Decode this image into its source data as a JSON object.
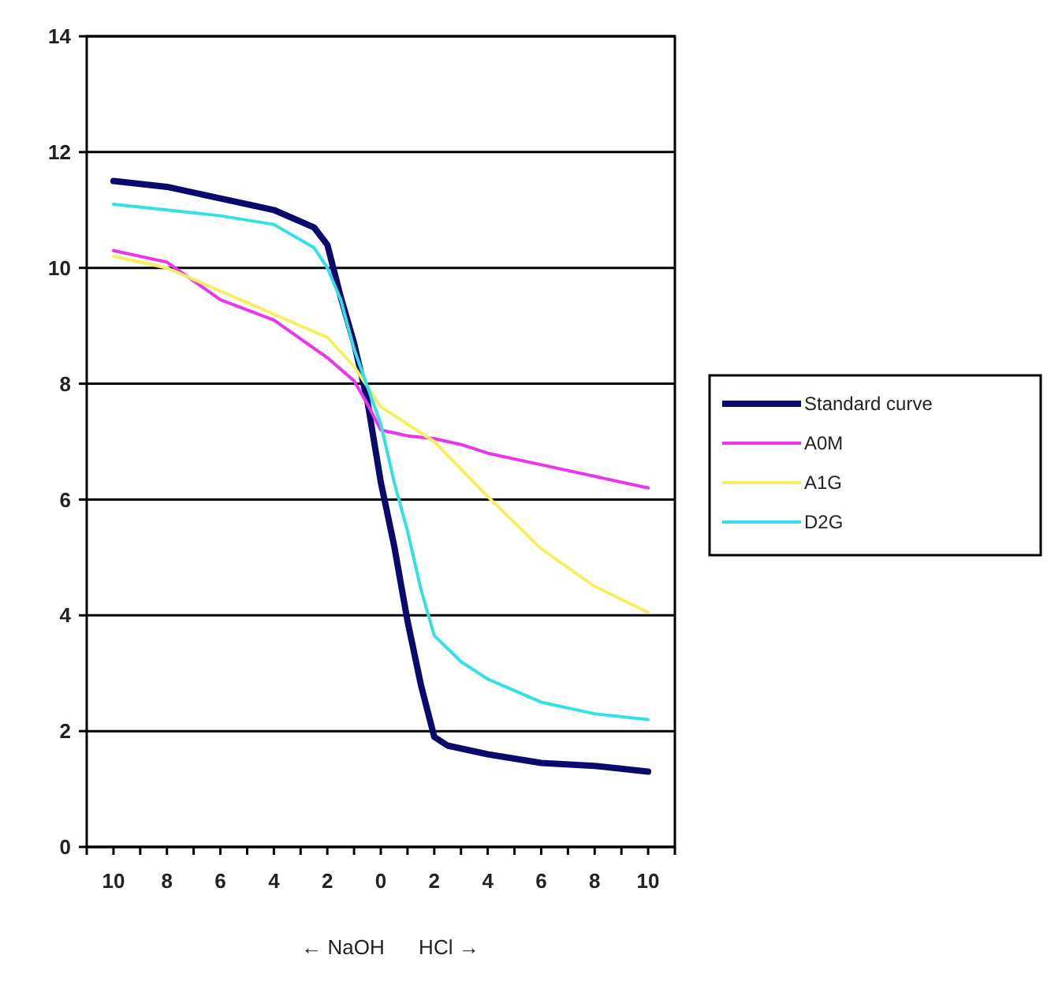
{
  "chart_data": {
    "type": "line",
    "xlabel": "← NaOH      HCl →",
    "xlim": [
      -11,
      11
    ],
    "xticks": [
      {
        "value": -11,
        "label": null
      },
      {
        "value": -10,
        "label": "10"
      },
      {
        "value": -9,
        "label": null
      },
      {
        "value": -8,
        "label": "8"
      },
      {
        "value": -7,
        "label": null
      },
      {
        "value": -6,
        "label": "6"
      },
      {
        "value": -5,
        "label": null
      },
      {
        "value": -4,
        "label": "4"
      },
      {
        "value": -3,
        "label": null
      },
      {
        "value": -2,
        "label": "2"
      },
      {
        "value": -1,
        "label": null
      },
      {
        "value": 0,
        "label": "0"
      },
      {
        "value": 1,
        "label": null
      },
      {
        "value": 2,
        "label": "2"
      },
      {
        "value": 3,
        "label": null
      },
      {
        "value": 4,
        "label": "4"
      },
      {
        "value": 5,
        "label": null
      },
      {
        "value": 6,
        "label": "6"
      },
      {
        "value": 7,
        "label": null
      },
      {
        "value": 8,
        "label": "8"
      },
      {
        "value": 9,
        "label": null
      },
      {
        "value": 10,
        "label": "10"
      },
      {
        "value": 11,
        "label": null
      }
    ],
    "ylim": [
      0,
      14
    ],
    "yticks": [
      0,
      2,
      4,
      6,
      8,
      10,
      12,
      14
    ],
    "grid": "y",
    "legend": "right",
    "marker": "none",
    "line_style": "solid",
    "series": [
      {
        "name": "Standard curve",
        "color": "#0a0a6e",
        "x": [
          -10,
          -8,
          -6,
          -4,
          -2.5,
          -2,
          -1.5,
          -1,
          -0.5,
          0,
          0.5,
          1,
          1.5,
          2,
          2.5,
          4,
          6,
          8,
          10
        ],
        "values": [
          11.5,
          11.4,
          11.2,
          11.0,
          10.7,
          10.4,
          9.5,
          8.7,
          7.7,
          6.3,
          5.2,
          3.9,
          2.8,
          1.9,
          1.75,
          1.6,
          1.45,
          1.4,
          1.3
        ]
      },
      {
        "name": "A0M",
        "color": "#ee33ee",
        "x": [
          -10,
          -8,
          -6,
          -4,
          -2,
          -1,
          -0.5,
          0,
          1,
          2,
          3,
          4,
          6,
          8,
          10
        ],
        "values": [
          10.3,
          10.1,
          9.45,
          9.1,
          8.45,
          8.05,
          7.65,
          7.2,
          7.1,
          7.05,
          6.95,
          6.8,
          6.6,
          6.4,
          6.2
        ]
      },
      {
        "name": "A1G",
        "color": "#f5f060",
        "x": [
          -10,
          -8,
          -6,
          -4,
          -2,
          -1,
          0,
          1,
          2,
          4,
          6,
          8,
          10
        ],
        "values": [
          10.2,
          10.0,
          9.6,
          9.2,
          8.8,
          8.3,
          7.6,
          7.3,
          7.0,
          6.05,
          5.15,
          4.5,
          4.05
        ]
      },
      {
        "name": "D2G",
        "color": "#33e0e8",
        "x": [
          -10,
          -8,
          -6,
          -4,
          -2.5,
          -2,
          -1.5,
          -1,
          0,
          0.5,
          1,
          1.5,
          2,
          3,
          4,
          6,
          8,
          10
        ],
        "values": [
          11.1,
          11.0,
          10.9,
          10.75,
          10.35,
          10.0,
          9.45,
          8.6,
          7.3,
          6.3,
          5.45,
          4.45,
          3.65,
          3.2,
          2.9,
          2.5,
          2.3,
          2.2
        ]
      }
    ]
  }
}
